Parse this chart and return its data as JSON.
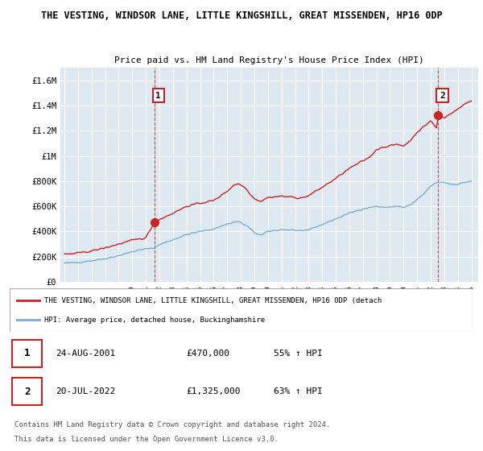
{
  "title1": "THE VESTING, WINDSOR LANE, LITTLE KINGSHILL, GREAT MISSENDEN, HP16 0DP",
  "title2": "Price paid vs. HM Land Registry's House Price Index (HPI)",
  "ylim": [
    0,
    1700000
  ],
  "yticks": [
    0,
    200000,
    400000,
    600000,
    800000,
    1000000,
    1200000,
    1400000,
    1600000
  ],
  "ytick_labels": [
    "£0",
    "£200K",
    "£400K",
    "£600K",
    "£800K",
    "£1M",
    "£1.2M",
    "£1.4M",
    "£1.6M"
  ],
  "background_color": "#ffffff",
  "plot_bg_color": "#dde8f0",
  "grid_color": "#ffffff",
  "sale_color": "#cc2222",
  "hpi_color": "#7aadd4",
  "ann1_x": 2001.622,
  "ann1_y": 470000,
  "ann2_x": 2022.55,
  "ann2_y": 1325000,
  "annotation1": {
    "label": "1",
    "date": "24-AUG-2001",
    "price": "£470,000",
    "pct": "55% ↑ HPI"
  },
  "annotation2": {
    "label": "2",
    "date": "20-JUL-2022",
    "price": "£1,325,000",
    "pct": "63% ↑ HPI"
  },
  "legend_sale": "THE VESTING, WINDSOR LANE, LITTLE KINGSHILL, GREAT MISSENDEN, HP16 0DP (detach",
  "legend_hpi": "HPI: Average price, detached house, Buckinghamshire",
  "footer1": "Contains HM Land Registry data © Crown copyright and database right 2024.",
  "footer2": "This data is licensed under the Open Government Licence v3.0.",
  "xlim_lo": 1994.7,
  "xlim_hi": 2025.5
}
